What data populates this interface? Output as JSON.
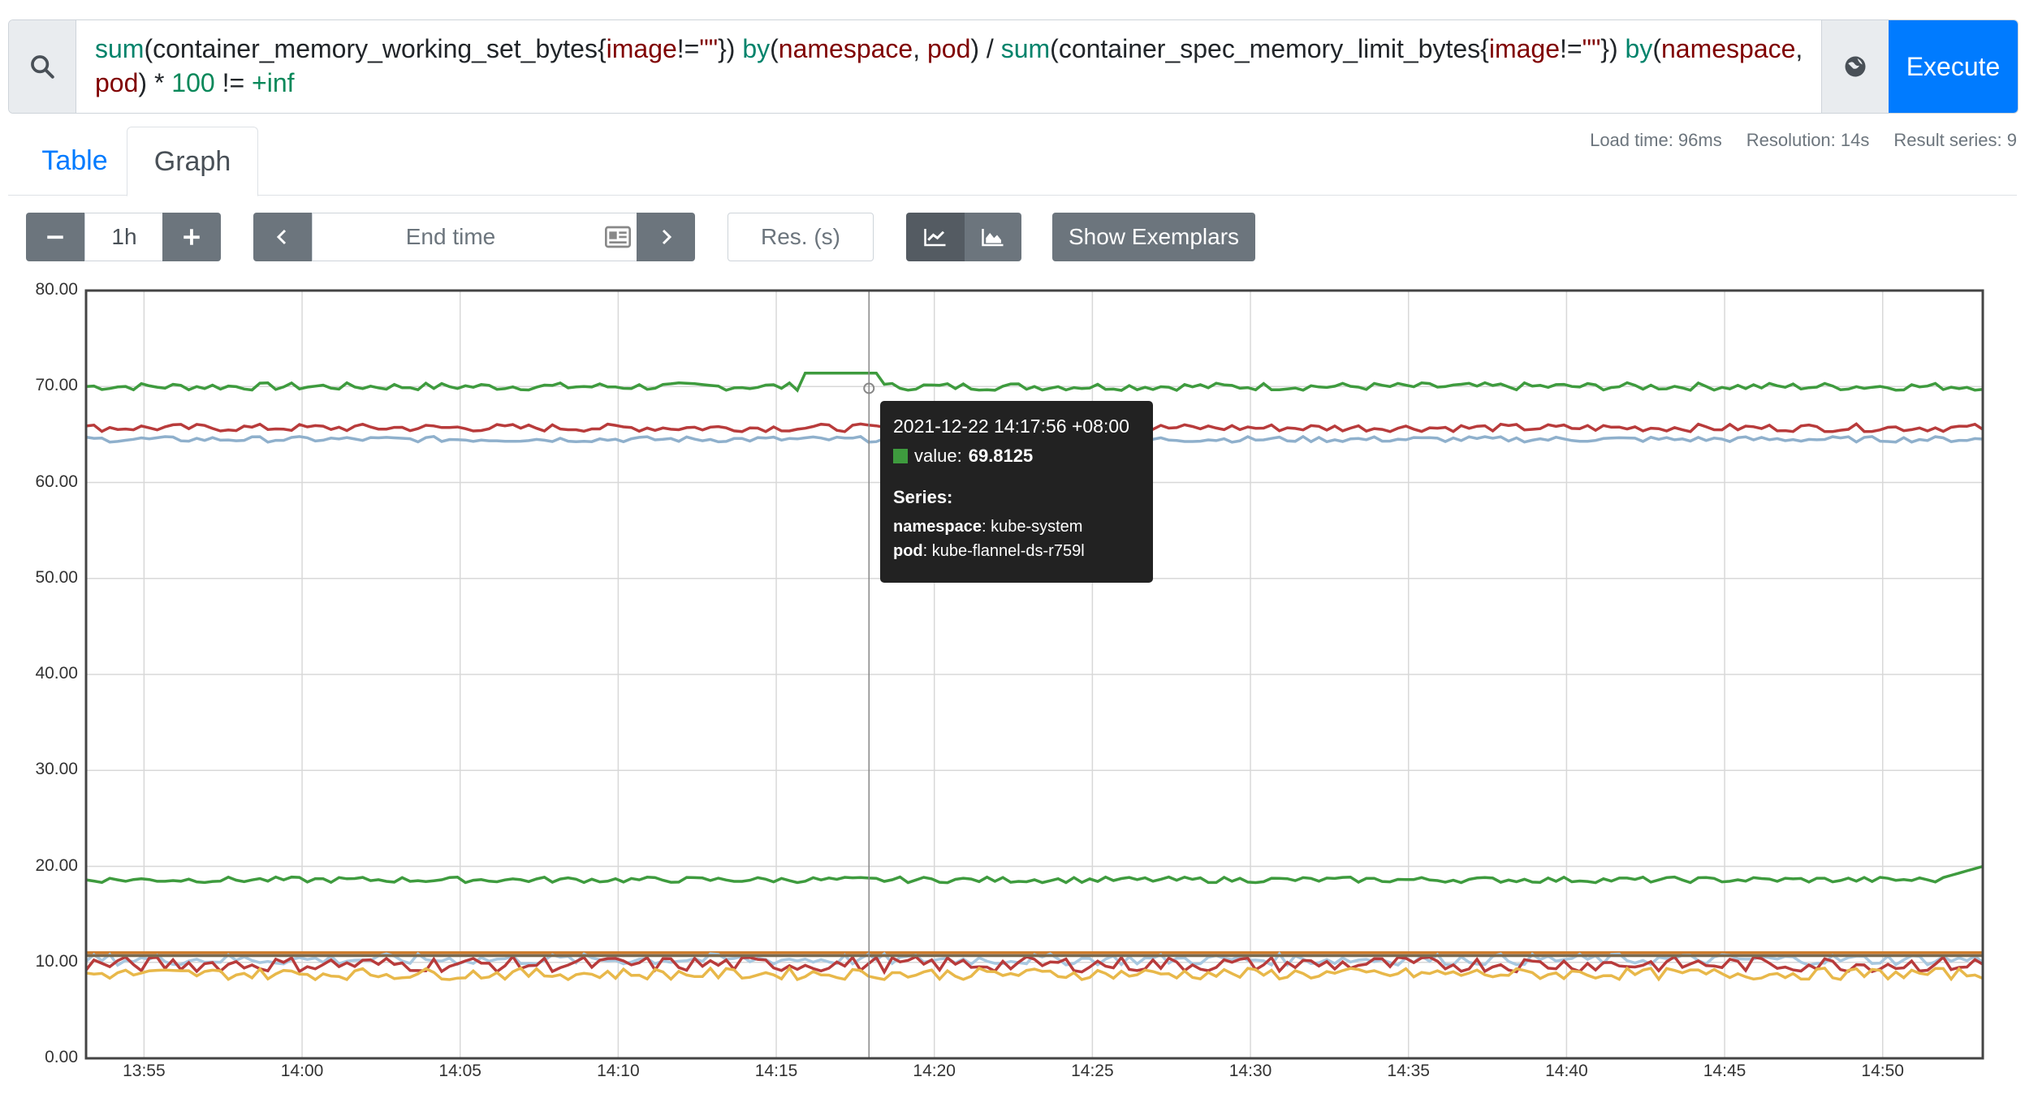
{
  "query": {
    "segments": [
      {
        "t": "sum",
        "c": "fn"
      },
      {
        "t": "(container_memory_working_set_bytes{",
        "c": ""
      },
      {
        "t": "image",
        "c": "lbl"
      },
      {
        "t": "!=",
        "c": ""
      },
      {
        "t": "\"\"",
        "c": "lbl"
      },
      {
        "t": "}) ",
        "c": ""
      },
      {
        "t": "by",
        "c": "fn"
      },
      {
        "t": "(",
        "c": ""
      },
      {
        "t": "namespace",
        "c": "lbl"
      },
      {
        "t": ", ",
        "c": ""
      },
      {
        "t": "pod",
        "c": "lbl"
      },
      {
        "t": ") / ",
        "c": ""
      },
      {
        "t": "sum",
        "c": "fn"
      },
      {
        "t": "(container_spec_memory_limit_bytes{",
        "c": ""
      },
      {
        "t": "image",
        "c": "lbl"
      },
      {
        "t": "!=",
        "c": ""
      },
      {
        "t": "\"\"",
        "c": "lbl"
      },
      {
        "t": "}) ",
        "c": ""
      },
      {
        "t": "by",
        "c": "fn"
      },
      {
        "t": "(",
        "c": ""
      },
      {
        "t": "namespace",
        "c": "lbl"
      },
      {
        "t": ", ",
        "c": ""
      },
      {
        "t": "pod",
        "c": "lbl"
      },
      {
        "t": ") * ",
        "c": ""
      },
      {
        "t": "100",
        "c": "num"
      },
      {
        "t": " != ",
        "c": ""
      },
      {
        "t": "+inf",
        "c": "num"
      }
    ]
  },
  "execute_label": "Execute",
  "tabs": {
    "table": "Table",
    "graph": "Graph"
  },
  "stats": {
    "load": "Load time: 96ms",
    "resolution": "Resolution: 14s",
    "series": "Result series: 9"
  },
  "controls": {
    "range": "1h",
    "end_time_placeholder": "End time",
    "res_placeholder": "Res. (s)",
    "exemplars_label": "Show Exemplars"
  },
  "tooltip": {
    "time": "2021-12-22 14:17:56 +08:00",
    "value_label": "value:",
    "value": "69.8125",
    "series_label": "Series:",
    "ns_key": "namespace",
    "ns_val": ": kube-system",
    "pod_key": "pod",
    "pod_val": ": kube-flannel-ds-r759l"
  },
  "chart_data": {
    "type": "line",
    "ylim": [
      0,
      80
    ],
    "y_ticks": [
      "0.00",
      "10.00",
      "20.00",
      "30.00",
      "40.00",
      "50.00",
      "60.00",
      "70.00",
      "80.00"
    ],
    "x_ticks": [
      "13:55",
      "14:00",
      "14:05",
      "14:10",
      "14:15",
      "14:20",
      "14:25",
      "14:30",
      "14:35",
      "14:40",
      "14:45",
      "14:50"
    ],
    "x_range": [
      "13:53:10",
      "14:53:10"
    ],
    "series": [
      {
        "color": "#3e9b3e",
        "base": 70.0,
        "noise": 0.4,
        "bump": [
          14.25,
          71.4
        ]
      },
      {
        "color": "#b83b3b",
        "base": 65.7,
        "noise": 0.4
      },
      {
        "color": "#8fb0cc",
        "base": 64.5,
        "noise": 0.3
      },
      {
        "color": "#3e9b3e",
        "base": 18.6,
        "noise": 0.3,
        "end": 20.0
      },
      {
        "color": "#cc7a2a",
        "base": 11.0,
        "noise": 0.0
      },
      {
        "color": "#a8c8e0",
        "base": 10.3,
        "noise": 0.6
      },
      {
        "color": "#b83b3b",
        "base": 9.8,
        "noise": 0.8
      },
      {
        "color": "#e8b84a",
        "base": 8.8,
        "noise": 0.6
      },
      {
        "color": "#7a6a50",
        "base": 10.7,
        "noise": 0.0
      }
    ],
    "cursor_time": "14:17:56",
    "grid": true
  }
}
